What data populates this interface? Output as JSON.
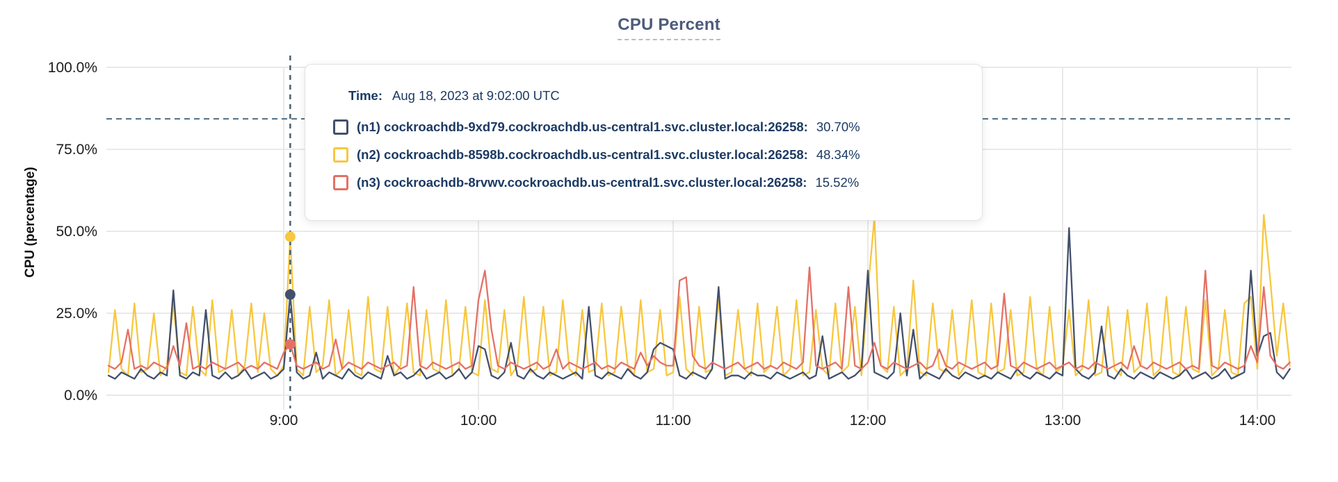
{
  "header": {
    "title": "CPU Percent"
  },
  "colors": {
    "text-navy": "#1c3a63",
    "title-slate": "#4e5b7c",
    "title-underline": "#b2bcc9",
    "grid": "#e9e9e9",
    "tick-label": "#1d1d1d",
    "threshold": "#4e6d85",
    "crosshair": "#49616f",
    "tooltip-border": "#e2e2e2"
  },
  "tooltip": {
    "time_label": "Time:",
    "time_value": "Aug 18, 2023 at 9:02:00 UTC"
  },
  "chart_data": {
    "type": "line",
    "title": "CPU Percent",
    "xlabel": "",
    "ylabel": "CPU (percentage)",
    "ylim": [
      0,
      100
    ],
    "grid": true,
    "y_ticks": [
      {
        "value": 100,
        "label": "100.0%"
      },
      {
        "value": 75,
        "label": "75.0%"
      },
      {
        "value": 50,
        "label": "50.0%"
      },
      {
        "value": 25,
        "label": "25.0%"
      },
      {
        "value": 0,
        "label": "0.0%"
      }
    ],
    "x_ticks": [
      {
        "minutes": 540,
        "label": "9:00"
      },
      {
        "minutes": 600,
        "label": "10:00"
      },
      {
        "minutes": 660,
        "label": "11:00"
      },
      {
        "minutes": 720,
        "label": "12:00"
      },
      {
        "minutes": 780,
        "label": "13:00"
      },
      {
        "minutes": 840,
        "label": "14:00"
      }
    ],
    "x_start_minutes": 486,
    "x_step_minutes": 2,
    "threshold_percent": 84.3,
    "hover": {
      "minutes": 542,
      "time_text": "Aug 18, 2023 at 9:02:00 UTC"
    },
    "series": [
      {
        "id": "n1",
        "label": "(n1) cockroachdb-9xd79.cockroachdb.us-central1.svc.cluster.local:26258:",
        "color": "#43506c",
        "hover_value": 30.7,
        "hover_display": "30.70%",
        "values": [
          6,
          5,
          7,
          6,
          5,
          8,
          6,
          5,
          7,
          6,
          32,
          6,
          5,
          7,
          6,
          26,
          6,
          5,
          7,
          5,
          6,
          8,
          5,
          6,
          7,
          5,
          6,
          8,
          30.7,
          7,
          5,
          6,
          13,
          5,
          7,
          6,
          5,
          8,
          6,
          5,
          7,
          6,
          5,
          12,
          6,
          7,
          5,
          6,
          8,
          5,
          6,
          7,
          5,
          6,
          8,
          5,
          7,
          15,
          14,
          6,
          5,
          7,
          16,
          6,
          5,
          8,
          6,
          5,
          7,
          6,
          5,
          6,
          7,
          5,
          27,
          6,
          5,
          7,
          6,
          5,
          8,
          6,
          5,
          7,
          14,
          16,
          15,
          14,
          6,
          5,
          7,
          6,
          5,
          8,
          33,
          5,
          6,
          6,
          5,
          7,
          6,
          6,
          5,
          7,
          6,
          5,
          6,
          7,
          5,
          6,
          18,
          5,
          6,
          7,
          5,
          6,
          8,
          38,
          7,
          6,
          5,
          7,
          25,
          6,
          20,
          5,
          7,
          6,
          5,
          8,
          6,
          5,
          7,
          6,
          5,
          6,
          5,
          7,
          6,
          5,
          8,
          6,
          5,
          7,
          6,
          5,
          7,
          6,
          51,
          8,
          6,
          5,
          7,
          21,
          6,
          5,
          8,
          6,
          5,
          7,
          6,
          5,
          7,
          6,
          5,
          6,
          8,
          5,
          6,
          7,
          5,
          6,
          8,
          5,
          6,
          7,
          38,
          12,
          18,
          19,
          7,
          5,
          8
        ]
      },
      {
        "id": "n2",
        "label": "(n2) cockroachdb-8598b.cockroachdb.us-central1.svc.cluster.local:26258:",
        "color": "#f7c73f",
        "hover_value": 48.34,
        "hover_display": "48.34%",
        "values": [
          7,
          26,
          8,
          6,
          28,
          7,
          8,
          25,
          6,
          9,
          28,
          7,
          6,
          27,
          8,
          6,
          29,
          7,
          8,
          26,
          6,
          9,
          28,
          7,
          25,
          8,
          6,
          9,
          48.3,
          8,
          6,
          27,
          7,
          9,
          29,
          6,
          8,
          26,
          7,
          6,
          30,
          8,
          7,
          27,
          6,
          9,
          28,
          7,
          6,
          26,
          8,
          7,
          29,
          6,
          8,
          27,
          7,
          6,
          29,
          8,
          7,
          26,
          6,
          9,
          30,
          7,
          8,
          27,
          6,
          7,
          29,
          8,
          6,
          26,
          7,
          8,
          28,
          6,
          7,
          27,
          9,
          6,
          29,
          7,
          8,
          26,
          6,
          7,
          30,
          8,
          6,
          27,
          7,
          8,
          29,
          6,
          7,
          26,
          8,
          6,
          28,
          7,
          9,
          27,
          6,
          8,
          29,
          6,
          7,
          26,
          8,
          6,
          28,
          7,
          9,
          27,
          6,
          32,
          54,
          9,
          7,
          27,
          6,
          8,
          35,
          7,
          6,
          28,
          8,
          7,
          26,
          6,
          9,
          29,
          7,
          6,
          28,
          7,
          8,
          26,
          6,
          7,
          30,
          8,
          6,
          27,
          7,
          9,
          26,
          6,
          8,
          29,
          6,
          7,
          27,
          8,
          6,
          26,
          7,
          9,
          28,
          6,
          8,
          30,
          7,
          6,
          27,
          8,
          7,
          29,
          6,
          8,
          26,
          7,
          6,
          28,
          30,
          8,
          55,
          35,
          12,
          28,
          9
        ]
      },
      {
        "id": "n3",
        "label": "(n3) cockroachdb-8rvwv.cockroachdb.us-central1.svc.cluster.local:26258:",
        "color": "#e57066",
        "hover_value": 15.52,
        "hover_display": "15.52%",
        "values": [
          9,
          8,
          10,
          20,
          8,
          9,
          8,
          10,
          9,
          8,
          15,
          9,
          22,
          8,
          9,
          8,
          10,
          9,
          8,
          9,
          10,
          8,
          9,
          8,
          10,
          9,
          8,
          13,
          15.5,
          9,
          8,
          9,
          10,
          8,
          9,
          17,
          8,
          10,
          9,
          8,
          10,
          9,
          8,
          9,
          10,
          8,
          9,
          33,
          9,
          8,
          10,
          9,
          8,
          9,
          10,
          8,
          9,
          29,
          38,
          20,
          9,
          8,
          10,
          9,
          8,
          9,
          10,
          8,
          9,
          14,
          8,
          10,
          9,
          8,
          9,
          10,
          8,
          9,
          8,
          10,
          9,
          8,
          13,
          9,
          12,
          10,
          9,
          9,
          35,
          36,
          12,
          9,
          8,
          10,
          9,
          8,
          9,
          10,
          8,
          9,
          10,
          8,
          9,
          8,
          10,
          9,
          8,
          10,
          39,
          9,
          8,
          9,
          10,
          8,
          33,
          9,
          8,
          10,
          16,
          9,
          8,
          10,
          9,
          8,
          9,
          10,
          8,
          9,
          14,
          9,
          8,
          10,
          9,
          8,
          9,
          10,
          8,
          9,
          31,
          9,
          8,
          10,
          9,
          8,
          9,
          10,
          8,
          9,
          10,
          8,
          9,
          8,
          10,
          9,
          8,
          9,
          10,
          8,
          15,
          9,
          8,
          10,
          9,
          8,
          9,
          10,
          8,
          9,
          8,
          38,
          9,
          8,
          10,
          9,
          8,
          9,
          15,
          10,
          33,
          12,
          9,
          8,
          10
        ]
      }
    ]
  }
}
